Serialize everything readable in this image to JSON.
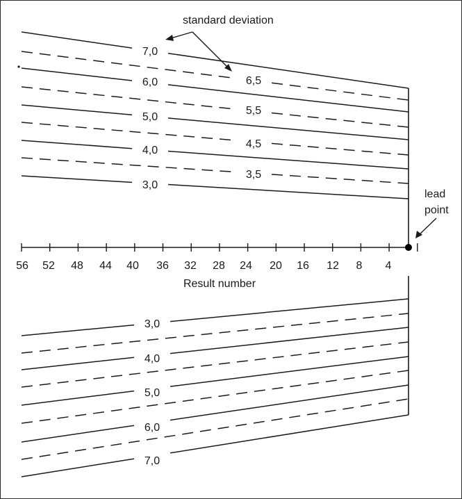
{
  "annotations": {
    "standard_deviation": "standard deviation",
    "lead_point_line1": "lead",
    "lead_point_line2": "point"
  },
  "axis": {
    "title": "Result number",
    "ticks": [
      "56",
      "52",
      "48",
      "44",
      "40",
      "36",
      "32",
      "28",
      "24",
      "20",
      "16",
      "12",
      "8",
      "4"
    ]
  },
  "upper_lines": [
    {
      "label": "7,0",
      "style": "solid"
    },
    {
      "label": "6,5",
      "style": "dashed"
    },
    {
      "label": "6,0",
      "style": "solid"
    },
    {
      "label": "5,5",
      "style": "dashed"
    },
    {
      "label": "5,0",
      "style": "solid"
    },
    {
      "label": "4,5",
      "style": "dashed"
    },
    {
      "label": "4,0",
      "style": "solid"
    },
    {
      "label": "3,5",
      "style": "dashed"
    },
    {
      "label": "3,0",
      "style": "solid"
    }
  ],
  "lower_lines": [
    {
      "label": "3,0",
      "style": "solid"
    },
    {
      "label": "",
      "style": "dashed"
    },
    {
      "label": "4,0",
      "style": "solid"
    },
    {
      "label": "",
      "style": "dashed"
    },
    {
      "label": "5,0",
      "style": "solid"
    },
    {
      "label": "",
      "style": "dashed"
    },
    {
      "label": "6,0",
      "style": "solid"
    },
    {
      "label": "",
      "style": "dashed"
    },
    {
      "label": "7,0",
      "style": "solid"
    }
  ],
  "colors": {
    "ink": "#1a1a1a",
    "background": "#ffffff"
  }
}
